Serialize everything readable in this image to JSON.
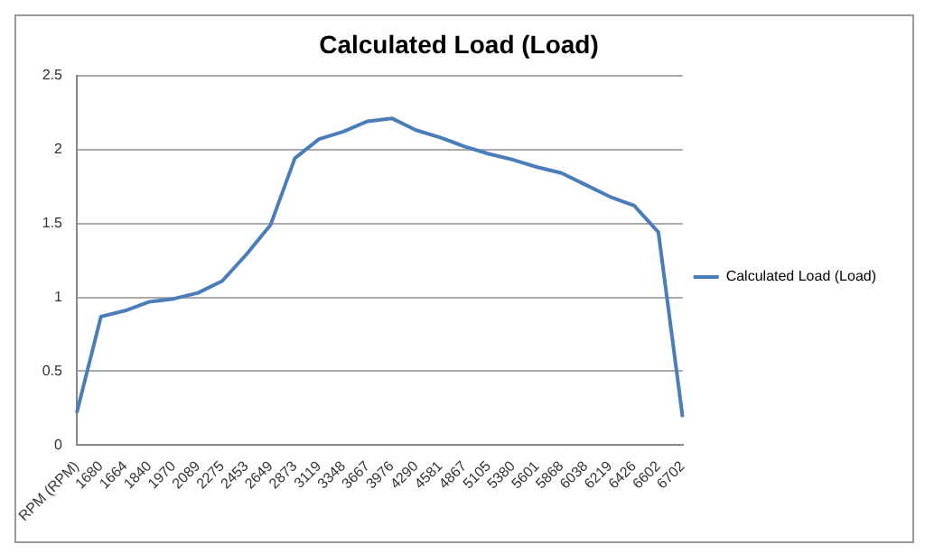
{
  "chart_data": {
    "type": "line",
    "title": "Calculated Load (Load)",
    "categories": [
      "RPM (RPM)",
      "1680",
      "1664",
      "1840",
      "1970",
      "2089",
      "2275",
      "2453",
      "2649",
      "2873",
      "3119",
      "3348",
      "3667",
      "3976",
      "4290",
      "4581",
      "4867",
      "5105",
      "5380",
      "5601",
      "5868",
      "6038",
      "6219",
      "6426",
      "6602",
      "6702"
    ],
    "series": [
      {
        "name": "Calculated Load (Load)",
        "color": "#4a7ebb",
        "values": [
          0.22,
          0.87,
          0.91,
          0.97,
          0.99,
          1.03,
          1.11,
          1.29,
          1.49,
          1.94,
          2.07,
          2.12,
          2.19,
          2.21,
          2.13,
          2.08,
          2.02,
          1.97,
          1.93,
          1.88,
          1.84,
          1.76,
          1.68,
          1.62,
          1.44,
          0.19
        ]
      }
    ],
    "ylim": [
      0,
      2.5
    ],
    "yticks": [
      0,
      0.5,
      1,
      1.5,
      2,
      2.5
    ],
    "grid": "y",
    "legend": "right",
    "marker": "none",
    "line_style": "solid"
  }
}
